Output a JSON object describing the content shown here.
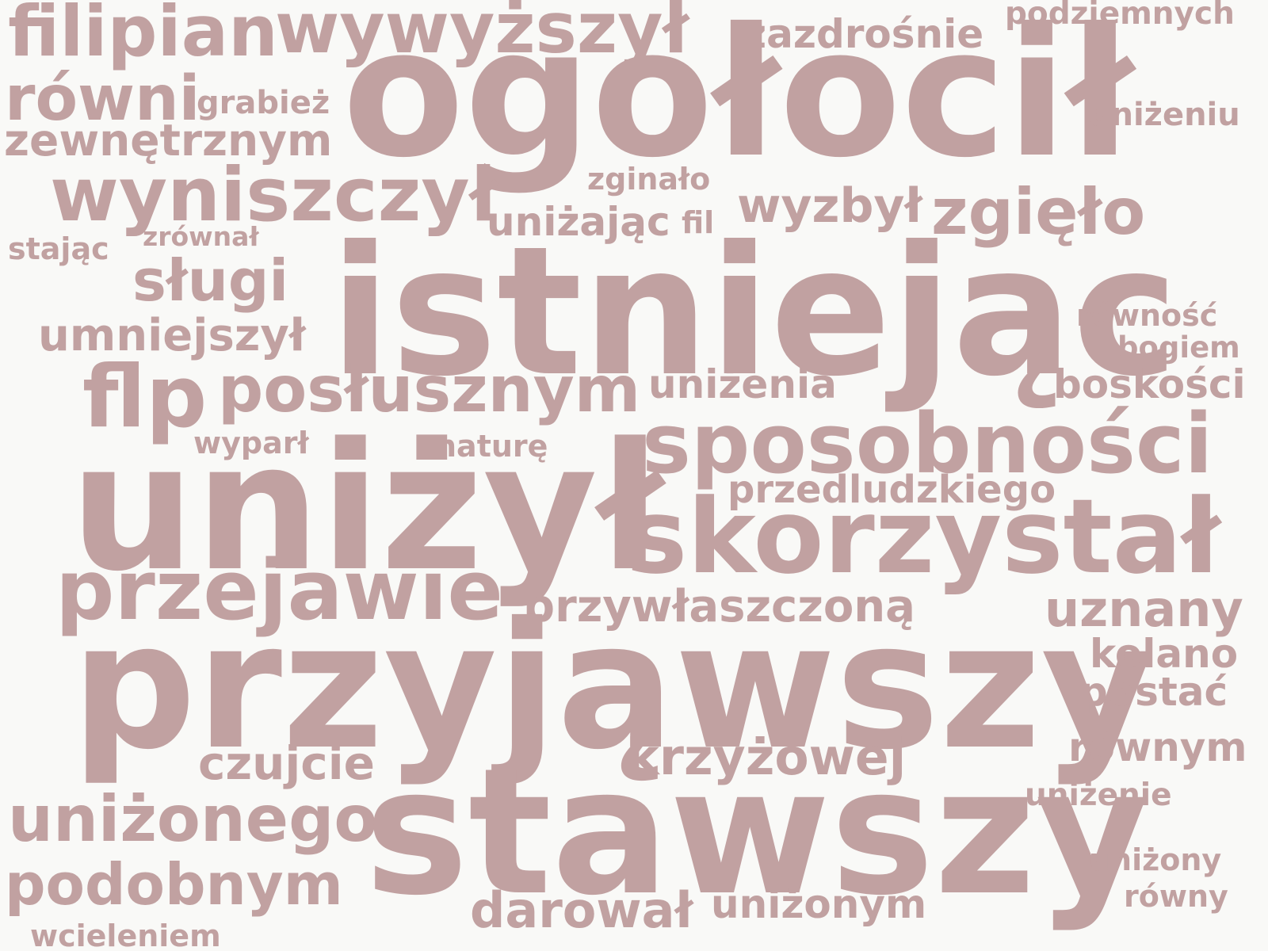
{
  "cloud": {
    "color": "#c1a1a1",
    "background": "#f9f9f7",
    "words": [
      "filipian",
      "wywyższył",
      "zazdrośnie",
      "podziemnych",
      "ogołocił",
      "równi",
      "grabież",
      "uniżeniu",
      "zewnętrznym",
      "wyniszczył",
      "zginało",
      "wyzbył",
      "zgięło",
      "uniżając",
      "fil",
      "stając",
      "zrównał",
      "istniejąc",
      "sługi",
      "równość",
      "umniejszył",
      "bogiem",
      "uniżenia",
      "flp",
      "posłusznym",
      "boskości",
      "sposobności",
      "wyparł",
      "naturę",
      "uniżył",
      "przedludzkiego",
      "skorzystał",
      "przejawie",
      "przywłaszczoną",
      "uznany",
      "przyjąwszy",
      "kolano",
      "postać",
      "równym",
      "czujcie",
      "krzyżowej",
      "uniżenie",
      "uniżonego",
      "stawszy",
      "uniżony",
      "podobnym",
      "równy",
      "darował",
      "uniżonym",
      "wcieleniem"
    ]
  }
}
